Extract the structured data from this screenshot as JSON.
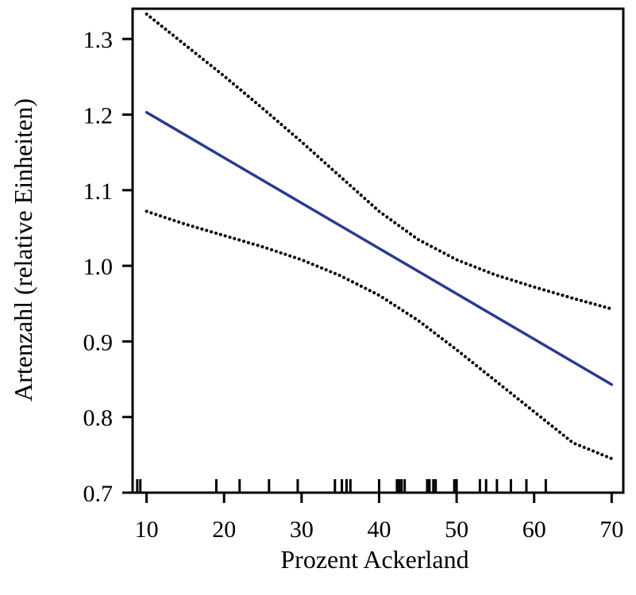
{
  "chart_data": {
    "type": "line",
    "xlabel": "Prozent Ackerland",
    "ylabel": "Artenzahl (relative Einheiten)",
    "xlim": [
      8.2,
      71.5
    ],
    "ylim": [
      0.7,
      1.34
    ],
    "xticks": [
      10,
      20,
      30,
      40,
      50,
      60,
      70
    ],
    "yticks": [
      0.7,
      0.8,
      0.9,
      1.0,
      1.1,
      1.2,
      1.3
    ],
    "xtick_labels": [
      "10",
      "20",
      "30",
      "40",
      "50",
      "60",
      "70"
    ],
    "ytick_labels": [
      "0.7",
      "0.8",
      "0.9",
      "1.0",
      "1.1",
      "1.2",
      "1.3"
    ],
    "grid": false,
    "series": [
      {
        "role": "fit",
        "style": "solid",
        "color": "#2a3a8f",
        "x": [
          10,
          70
        ],
        "y": [
          1.203,
          0.843
        ]
      },
      {
        "role": "upper confidence bound",
        "style": "dotted",
        "color": "#000000",
        "x": [
          10,
          15,
          20,
          25,
          30,
          35,
          40,
          45,
          50,
          55,
          60,
          65,
          70
        ],
        "y": [
          1.333,
          1.292,
          1.251,
          1.208,
          1.164,
          1.118,
          1.072,
          1.035,
          1.008,
          0.988,
          0.972,
          0.957,
          0.943
        ]
      },
      {
        "role": "lower confidence bound",
        "style": "dotted",
        "color": "#000000",
        "x": [
          10,
          15,
          20,
          25,
          30,
          35,
          40,
          45,
          50,
          55,
          60,
          65,
          70
        ],
        "y": [
          1.072,
          1.055,
          1.04,
          1.025,
          1.008,
          0.987,
          0.961,
          0.928,
          0.889,
          0.848,
          0.807,
          0.766,
          0.745
        ]
      }
    ],
    "rug_x": [
      8.8,
      9.2,
      19,
      22,
      25.8,
      29.5,
      34.3,
      35.2,
      35.8,
      36.3,
      40,
      42.3,
      42.6,
      42.9,
      43.3,
      46.2,
      46.5,
      47,
      47.3,
      49.7,
      50,
      53,
      53.8,
      55.2,
      57,
      59,
      61.5
    ]
  }
}
